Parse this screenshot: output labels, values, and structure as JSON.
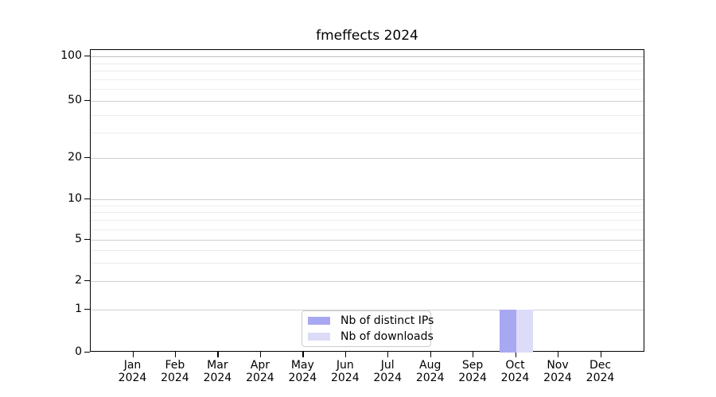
{
  "chart_data": {
    "type": "bar",
    "title": "fmeffects 2024",
    "categories": [
      {
        "month": "Jan",
        "year": "2024"
      },
      {
        "month": "Feb",
        "year": "2024"
      },
      {
        "month": "Mar",
        "year": "2024"
      },
      {
        "month": "Apr",
        "year": "2024"
      },
      {
        "month": "May",
        "year": "2024"
      },
      {
        "month": "Jun",
        "year": "2024"
      },
      {
        "month": "Jul",
        "year": "2024"
      },
      {
        "month": "Aug",
        "year": "2024"
      },
      {
        "month": "Sep",
        "year": "2024"
      },
      {
        "month": "Oct",
        "year": "2024"
      },
      {
        "month": "Nov",
        "year": "2024"
      },
      {
        "month": "Dec",
        "year": "2024"
      }
    ],
    "series": [
      {
        "name": "Nb of distinct IPs",
        "color": "#a8a8f2",
        "values": [
          0,
          0,
          0,
          0,
          0,
          0,
          0,
          0,
          0,
          1,
          0,
          0
        ]
      },
      {
        "name": "Nb of downloads",
        "color": "#dcdcf8",
        "values": [
          0,
          0,
          0,
          0,
          0,
          0,
          0,
          0,
          0,
          1,
          0,
          0
        ]
      }
    ],
    "y_axis": {
      "scale": "log",
      "major_ticks": [
        0,
        1,
        2,
        5,
        10,
        20,
        50,
        100
      ],
      "minor_gridlines": [
        3,
        4,
        6,
        7,
        8,
        9,
        30,
        40,
        60,
        70,
        80,
        90
      ]
    },
    "x_axis": {
      "label_lines": 2
    },
    "legend": {
      "position": "lower-center",
      "border_color": "#cccccc"
    },
    "grid": true,
    "colors": {
      "spine": "#000000",
      "major_grid": "#cfcfcf",
      "minor_grid": "#ececec",
      "top_major_grid": "#bdbdbd"
    }
  }
}
